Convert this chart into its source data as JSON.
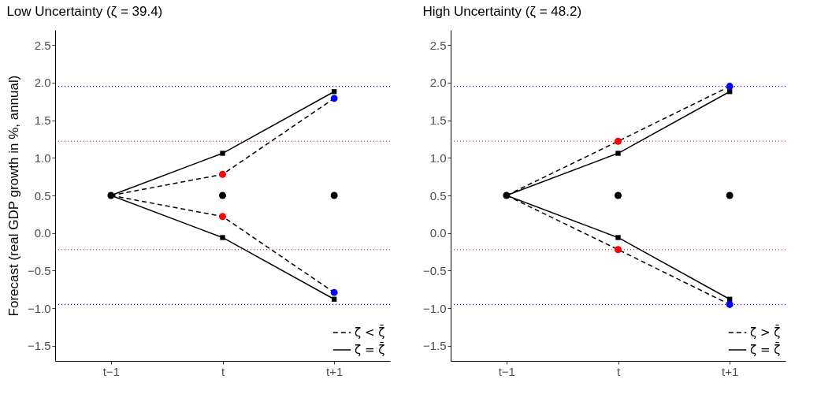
{
  "chart_data": [
    {
      "type": "line",
      "title": "Low Uncertainty (ζ = 39.4)",
      "ylabel": "Forecast (real GDP growth in %, annual)",
      "categories": [
        "t−1",
        "t",
        "t+1"
      ],
      "ylim": [
        -1.7,
        2.7
      ],
      "yticks": [
        {
          "value": -1.5,
          "label": "−1.5"
        },
        {
          "value": -1,
          "label": "−1.0"
        },
        {
          "value": -0.5,
          "label": "−0.5"
        },
        {
          "value": 0,
          "label": "0.0"
        },
        0.5,
        {
          "value": 1,
          "label": "1.0"
        },
        1.5,
        {
          "value": 2,
          "label": "2.0"
        },
        2.5
      ],
      "grid": false,
      "legend": "bottom right",
      "ref_lines": [
        {
          "axis": "y",
          "value": 1.95,
          "color": "#0000ff",
          "line_style": "dotted"
        },
        {
          "axis": "y",
          "value": -0.95,
          "color": "#0000ff",
          "line_style": "dotted"
        },
        {
          "axis": "y",
          "value": 1.22,
          "color": "#ff0000",
          "line_style": "dotted"
        },
        {
          "axis": "y",
          "value": -0.22,
          "color": "#ff0000",
          "line_style": "dotted"
        }
      ],
      "series": [
        {
          "name": "ζ < ζ̄",
          "type": "line",
          "line_style": "dashed",
          "marker": "none",
          "color": "#000000",
          "values": [
            0.5,
            0.78,
            1.79
          ]
        },
        {
          "type": "line",
          "line_style": "dashed",
          "marker": "none",
          "color": "#000000",
          "values": [
            0.5,
            0.22,
            -0.79
          ]
        },
        {
          "name": "ζ = ζ̄",
          "type": "line",
          "line_style": "solid",
          "marker": "square",
          "color": "#000000",
          "values": [
            0.5,
            1.06,
            1.88
          ]
        },
        {
          "type": "line",
          "line_style": "solid",
          "marker": "square",
          "color": "#000000",
          "values": [
            0.5,
            -0.06,
            -0.88
          ]
        },
        {
          "type": "scatter",
          "marker": "circle",
          "color": "#ff0000",
          "values": [
            null,
            0.78,
            null
          ]
        },
        {
          "type": "scatter",
          "marker": "circle",
          "color": "#ff0000",
          "values": [
            null,
            0.22,
            null
          ]
        },
        {
          "type": "scatter",
          "marker": "circle",
          "color": "#0000ff",
          "values": [
            null,
            null,
            1.79
          ]
        },
        {
          "type": "scatter",
          "marker": "circle",
          "color": "#0000ff",
          "values": [
            null,
            null,
            -0.79
          ]
        },
        {
          "type": "scatter",
          "marker": "circle",
          "color": "#000000",
          "values": [
            0.5,
            0.5,
            0.5
          ]
        }
      ]
    },
    {
      "type": "line",
      "title": "High Uncertainty (ζ = 48.2)",
      "categories": [
        "t−1",
        "t",
        "t+1"
      ],
      "ylim": [
        -1.7,
        2.7
      ],
      "yticks": [
        {
          "value": -1.5,
          "label": "−1.5"
        },
        {
          "value": -1,
          "label": "−1.0"
        },
        {
          "value": -0.5,
          "label": "−0.5"
        },
        {
          "value": 0,
          "label": "0.0"
        },
        0.5,
        {
          "value": 1,
          "label": "1.0"
        },
        1.5,
        {
          "value": 2,
          "label": "2.0"
        },
        2.5
      ],
      "grid": false,
      "legend": "bottom right",
      "ref_lines": [
        {
          "axis": "y",
          "value": 1.95,
          "color": "#0000ff",
          "line_style": "dotted"
        },
        {
          "axis": "y",
          "value": -0.95,
          "color": "#0000ff",
          "line_style": "dotted"
        },
        {
          "axis": "y",
          "value": 1.22,
          "color": "#ff0000",
          "line_style": "dotted"
        },
        {
          "axis": "y",
          "value": -0.22,
          "color": "#ff0000",
          "line_style": "dotted"
        }
      ],
      "series": [
        {
          "name": "ζ > ζ̄",
          "type": "line",
          "line_style": "dashed",
          "marker": "none",
          "color": "#000000",
          "values": [
            0.5,
            1.22,
            1.95
          ]
        },
        {
          "type": "line",
          "line_style": "dashed",
          "marker": "none",
          "color": "#000000",
          "values": [
            0.5,
            -0.22,
            -0.95
          ]
        },
        {
          "name": "ζ = ζ̄",
          "type": "line",
          "line_style": "solid",
          "marker": "square",
          "color": "#000000",
          "values": [
            0.5,
            1.06,
            1.88
          ]
        },
        {
          "type": "line",
          "line_style": "solid",
          "marker": "square",
          "color": "#000000",
          "values": [
            0.5,
            -0.06,
            -0.88
          ]
        },
        {
          "type": "scatter",
          "marker": "circle",
          "color": "#ff0000",
          "values": [
            null,
            1.22,
            null
          ]
        },
        {
          "type": "scatter",
          "marker": "circle",
          "color": "#ff0000",
          "values": [
            null,
            -0.22,
            null
          ]
        },
        {
          "type": "scatter",
          "marker": "circle",
          "color": "#0000ff",
          "values": [
            null,
            null,
            1.95
          ]
        },
        {
          "type": "scatter",
          "marker": "circle",
          "color": "#0000ff",
          "values": [
            null,
            null,
            -0.95
          ]
        },
        {
          "type": "scatter",
          "marker": "circle",
          "color": "#000000",
          "values": [
            0.5,
            0.5,
            0.5
          ]
        }
      ]
    }
  ]
}
